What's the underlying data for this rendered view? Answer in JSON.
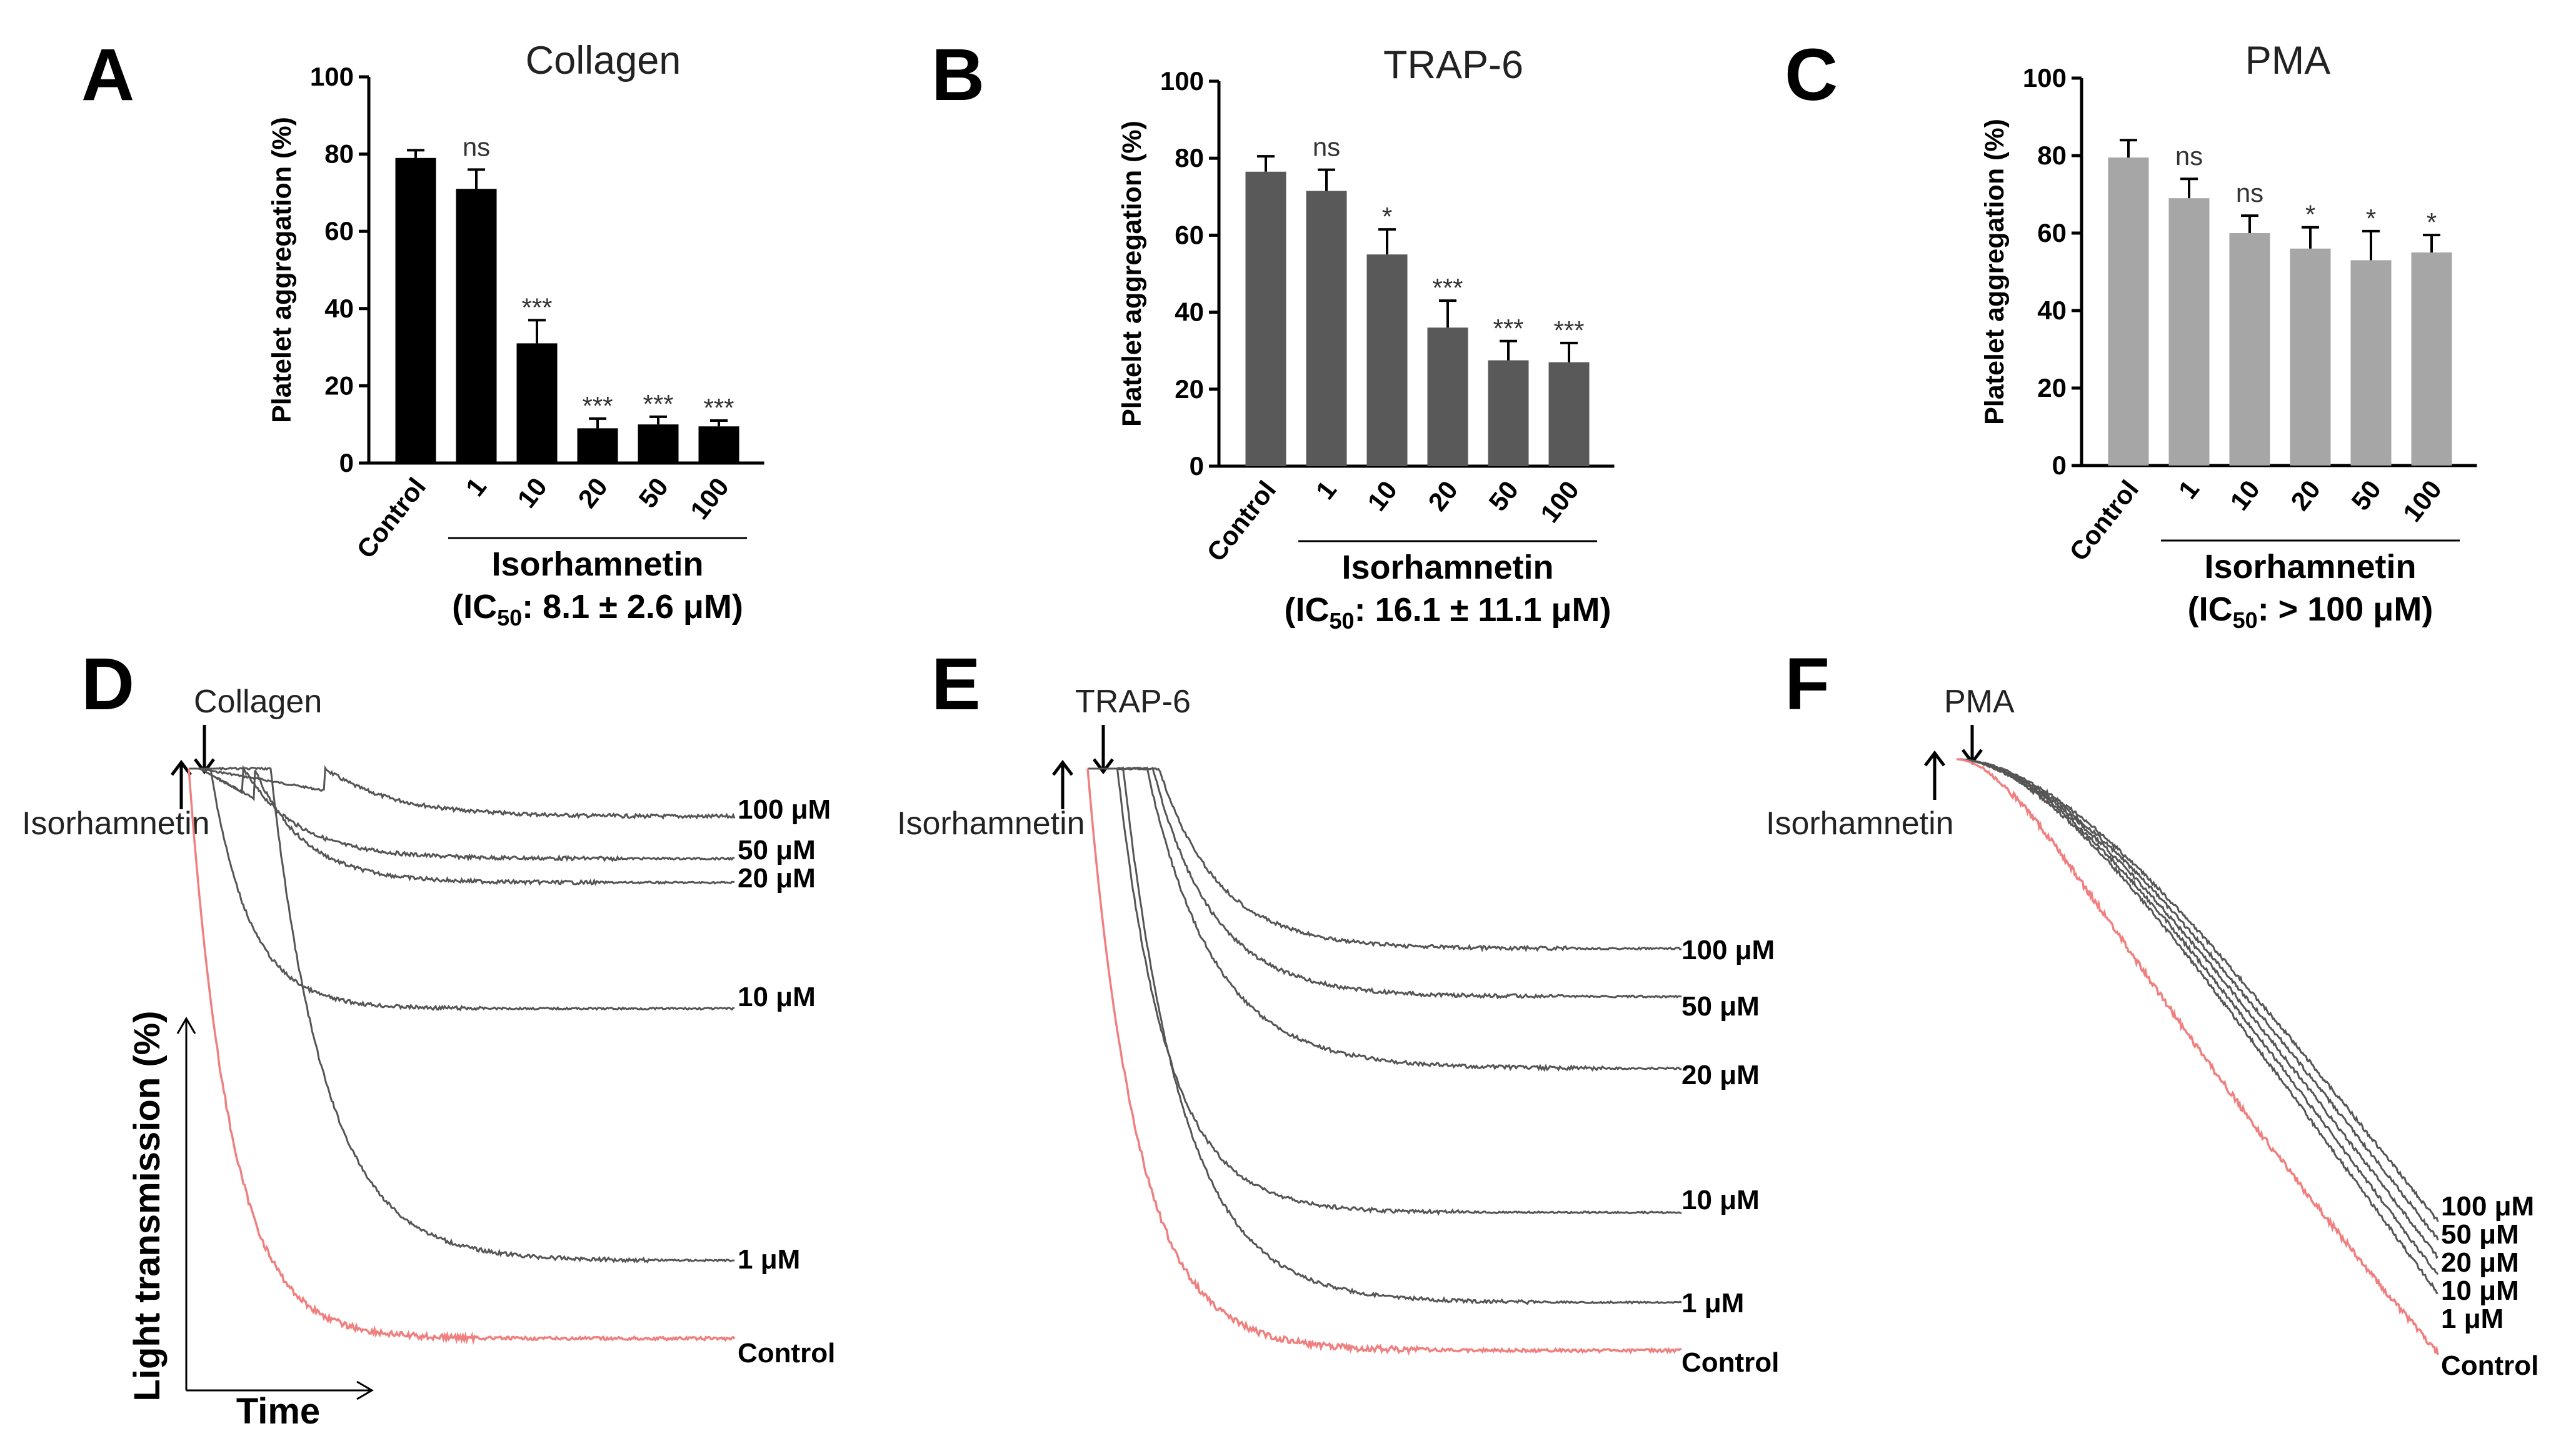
{
  "chart_data": [
    {
      "panel": "A",
      "type": "bar",
      "title": "Collagen",
      "ylabel": "Platelet aggregation (%)",
      "ylim": [
        0,
        100
      ],
      "yticks": [
        "0",
        "20",
        "40",
        "60",
        "80",
        "100"
      ],
      "categories": [
        "Control",
        "1",
        "10",
        "20",
        "50",
        "100"
      ],
      "values": [
        79,
        71,
        31,
        9,
        10,
        9.5
      ],
      "errors": [
        2,
        5,
        6,
        2.5,
        2,
        1.5
      ],
      "significance": [
        "",
        "ns",
        "***",
        "***",
        "***",
        "***"
      ],
      "group_label": "Isorhamnetin",
      "ic50_prefix": "(IC",
      "ic50_sub": "50",
      "ic50_suffix": ": 8.1 ± 2.6 μM)",
      "color": "#000000"
    },
    {
      "panel": "B",
      "type": "bar",
      "title": "TRAP-6",
      "ylabel": "Platelet aggregation (%)",
      "ylim": [
        0,
        100
      ],
      "yticks": [
        "0",
        "20",
        "40",
        "60",
        "80",
        "100"
      ],
      "categories": [
        "Control",
        "1",
        "10",
        "20",
        "50",
        "100"
      ],
      "values": [
        76.5,
        71.5,
        55,
        36,
        27.5,
        27
      ],
      "errors": [
        4,
        5.5,
        6.5,
        7,
        5,
        5
      ],
      "significance": [
        "",
        "ns",
        "*",
        "***",
        "***",
        "***"
      ],
      "group_label": "Isorhamnetin",
      "ic50_prefix": "(IC",
      "ic50_sub": "50",
      "ic50_suffix": ": 16.1 ± 11.1 μM)",
      "color": "#595959"
    },
    {
      "panel": "C",
      "type": "bar",
      "title": "PMA",
      "ylabel": "Platelet aggregation (%)",
      "ylim": [
        0,
        100
      ],
      "yticks": [
        "0",
        "20",
        "40",
        "60",
        "80",
        "100"
      ],
      "categories": [
        "Control",
        "1",
        "10",
        "20",
        "50",
        "100"
      ],
      "values": [
        79.5,
        69,
        60,
        56,
        53,
        55
      ],
      "errors": [
        4.5,
        5,
        4.5,
        5.5,
        7.5,
        4.5
      ],
      "significance": [
        "",
        "ns",
        "ns",
        "*",
        "*",
        "*"
      ],
      "group_label": "Isorhamnetin",
      "ic50_prefix": "(IC",
      "ic50_sub": "50",
      "ic50_suffix": ": > 100 μM)",
      "color": "#a6a6a6"
    },
    {
      "panel": "D",
      "type": "line",
      "agonist": "Collagen",
      "pretreatment": "Isorhamnetin",
      "ylabel": "Light transmission (%)",
      "xlabel": "Time",
      "series": [
        {
          "name": "100 μM",
          "final_drop_pct": 8,
          "color": "#555555"
        },
        {
          "name": "50 μM",
          "final_drop_pct": 15,
          "color": "#555555"
        },
        {
          "name": "20 μM",
          "final_drop_pct": 19,
          "color": "#555555"
        },
        {
          "name": "10 μM",
          "final_drop_pct": 40,
          "color": "#555555"
        },
        {
          "name": "1 μM",
          "final_drop_pct": 82,
          "color": "#555555"
        },
        {
          "name": "Control",
          "final_drop_pct": 95,
          "color": "#f08080"
        }
      ]
    },
    {
      "panel": "E",
      "type": "line",
      "agonist": "TRAP-6",
      "pretreatment": "Isorhamnetin",
      "series": [
        {
          "name": "100 μM",
          "final_drop_pct": 30,
          "color": "#555555"
        },
        {
          "name": "50 μM",
          "final_drop_pct": 38,
          "color": "#555555"
        },
        {
          "name": "20 μM",
          "final_drop_pct": 50,
          "color": "#555555"
        },
        {
          "name": "10 μM",
          "final_drop_pct": 74,
          "color": "#555555"
        },
        {
          "name": "1 μM",
          "final_drop_pct": 89,
          "color": "#555555"
        },
        {
          "name": "Control",
          "final_drop_pct": 97,
          "color": "#f08080"
        }
      ]
    },
    {
      "panel": "F",
      "type": "line",
      "agonist": "PMA",
      "pretreatment": "Isorhamnetin",
      "series": [
        {
          "name": "100 μM",
          "final_drop_pct": 77,
          "color": "#555555"
        },
        {
          "name": "50 μM",
          "final_drop_pct": 80,
          "color": "#555555"
        },
        {
          "name": "20 μM",
          "final_drop_pct": 83,
          "color": "#555555"
        },
        {
          "name": "10 μM",
          "final_drop_pct": 86,
          "color": "#555555"
        },
        {
          "name": "1 μM",
          "final_drop_pct": 89,
          "color": "#555555"
        },
        {
          "name": "Control",
          "final_drop_pct": 99,
          "color": "#f08080"
        }
      ]
    }
  ]
}
